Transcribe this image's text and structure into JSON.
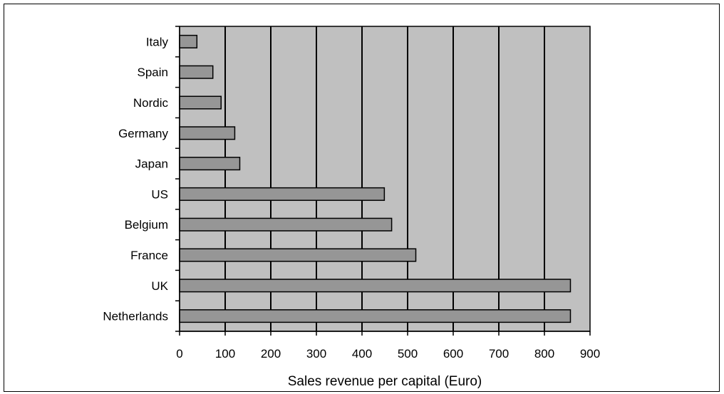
{
  "chart_data": {
    "type": "bar",
    "orientation": "horizontal",
    "categories": [
      "Netherlands",
      "UK",
      "France",
      "Belgium",
      "US",
      "Japan",
      "Germany",
      "Nordic",
      "Spain",
      "Italy"
    ],
    "values": [
      857,
      857,
      518,
      465,
      449,
      132,
      121,
      91,
      73,
      38
    ],
    "xlabel": "Sales revenue per capital (Euro)",
    "xlim": [
      0,
      900
    ],
    "xticks": [
      "0",
      "100",
      "200",
      "300",
      "400",
      "500",
      "600",
      "700",
      "800",
      "900"
    ],
    "grid": "vertical",
    "legend": "none",
    "colors": {
      "plot_background": "#c0c0c0",
      "bar_fill": "#969696",
      "bar_stroke": "#000000",
      "gridline": "#000000"
    }
  }
}
